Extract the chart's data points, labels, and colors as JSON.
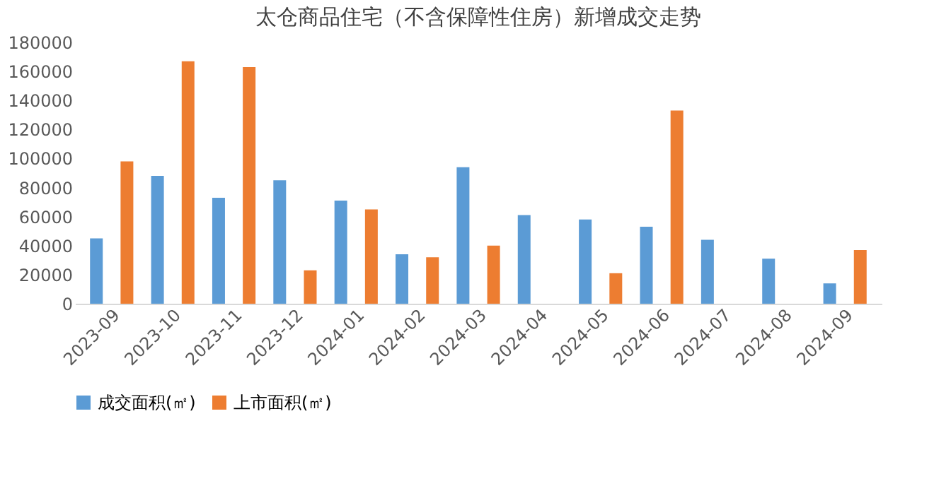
{
  "chart_data": {
    "type": "bar",
    "title": "太仓商品住宅（不含保障性住房）新增成交走势",
    "categories": [
      "2023-09",
      "2023-10",
      "2023-11",
      "2023-12",
      "2024-01",
      "2024-02",
      "2024-03",
      "2024-04",
      "2024-05",
      "2024-06",
      "2024-07",
      "2024-08",
      "2024-09"
    ],
    "series": [
      {
        "name": "成交面积(㎡)",
        "color": "#5b9bd5",
        "values": [
          45000,
          88000,
          73000,
          85000,
          71000,
          34000,
          94000,
          61000,
          58000,
          53000,
          44000,
          31000,
          14000
        ]
      },
      {
        "name": "上市面积(㎡)",
        "color": "#ed7d31",
        "values": [
          98000,
          167000,
          163000,
          23000,
          65000,
          32000,
          40000,
          null,
          21000,
          133000,
          null,
          null,
          37000
        ]
      }
    ],
    "ylim": [
      0,
      180000
    ],
    "yticks": [
      0,
      20000,
      40000,
      60000,
      80000,
      100000,
      120000,
      140000,
      160000,
      180000
    ],
    "grid": false,
    "legend": "bottom"
  }
}
